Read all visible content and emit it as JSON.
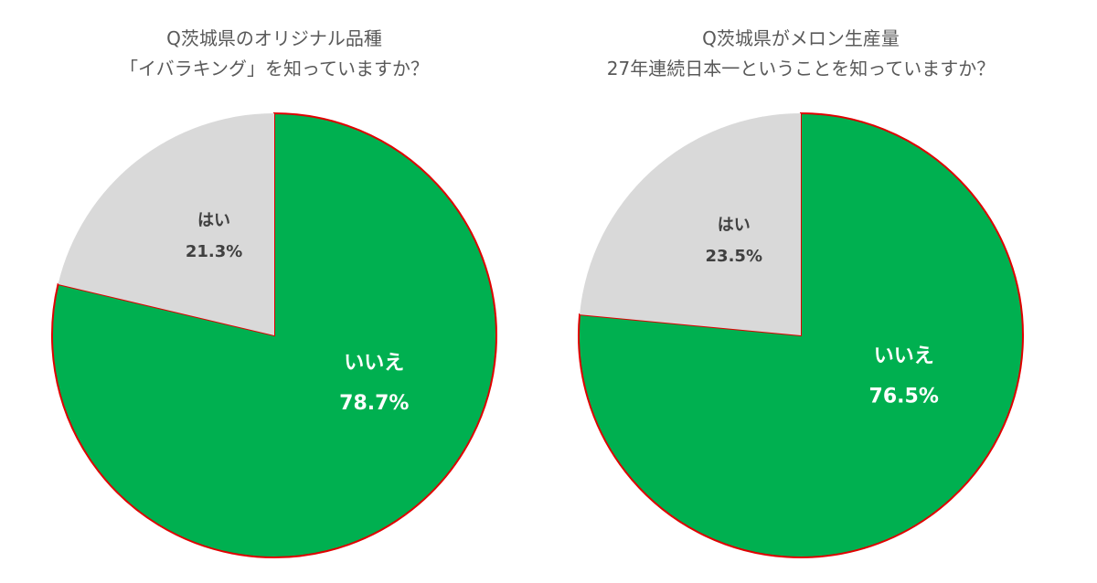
{
  "chart_data": [
    {
      "type": "pie",
      "title": "Q茨城県のオリジナル品種\n「イバラキング」を知っていますか？",
      "categories": [
        "いいえ",
        "はい"
      ],
      "values": [
        78.7,
        21.3
      ],
      "value_labels": [
        "78.7%",
        "21.3%"
      ],
      "colors": [
        "#00b050",
        "#d9d9d9"
      ],
      "label_colors": [
        "#ffffff",
        "#404040"
      ]
    },
    {
      "type": "pie",
      "title": "Q茨城県がメロン生産量\n27年連続日本一ということを知っていますか？",
      "categories": [
        "いいえ",
        "はい"
      ],
      "values": [
        76.5,
        23.5
      ],
      "value_labels": [
        "76.5%",
        "23.5%"
      ],
      "colors": [
        "#00b050",
        "#d9d9d9"
      ],
      "label_colors": [
        "#ffffff",
        "#404040"
      ]
    }
  ]
}
